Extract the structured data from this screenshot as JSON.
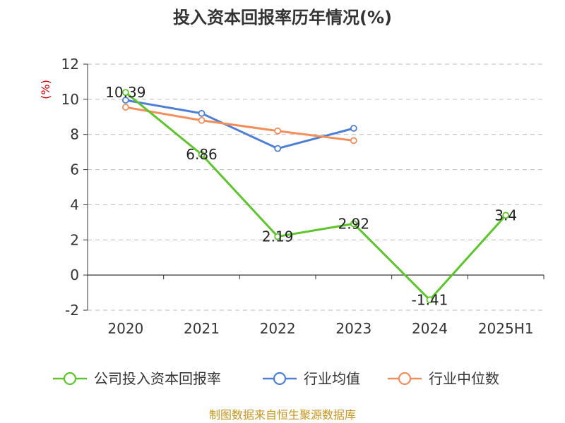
{
  "chart_data": {
    "type": "line",
    "title": "投入资本回报率历年情况(%)",
    "ylabel": "(%)",
    "categories": [
      "2020",
      "2021",
      "2022",
      "2023",
      "2024",
      "2025H1"
    ],
    "ylim": [
      -2,
      12
    ],
    "yticks": [
      -2,
      0,
      2,
      4,
      6,
      8,
      10,
      12
    ],
    "grid": true,
    "legend_position": "bottom",
    "series": [
      {
        "name": "公司投入资本回报率",
        "color": "#5cc52b",
        "values": [
          10.39,
          6.86,
          2.19,
          2.92,
          -1.41,
          3.4
        ],
        "labels": [
          "10.39",
          "6.86",
          "2.19",
          "2.92",
          "-1.41",
          "3.4"
        ]
      },
      {
        "name": "行业均值",
        "color": "#4e7fd6",
        "values": [
          9.95,
          9.2,
          7.2,
          8.35,
          null,
          null
        ]
      },
      {
        "name": "行业中位数",
        "color": "#f38e5b",
        "values": [
          9.55,
          8.8,
          8.2,
          7.65,
          null,
          null
        ]
      }
    ]
  },
  "source": "制图数据来自恒生聚源数据库"
}
